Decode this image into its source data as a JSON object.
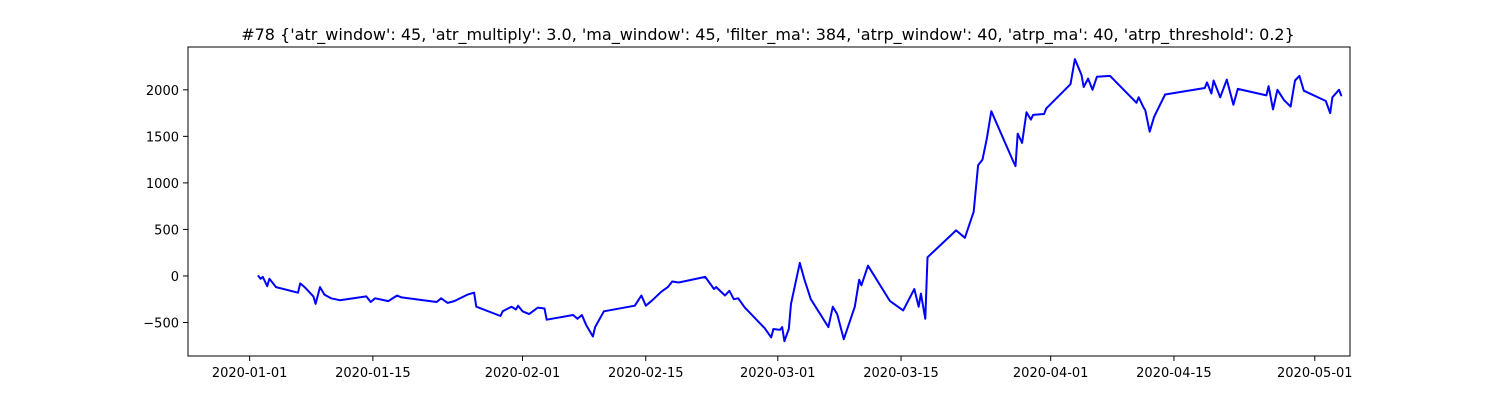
{
  "chart_data": {
    "type": "line",
    "title": "#78 {'atr_window': 45, 'atr_multiply': 3.0, 'ma_window': 45, 'filter_ma': 384, 'atrp_window': 40, 'atrp_ma': 40, 'atrp_threshold': 0.2}",
    "xlabel": "",
    "ylabel": "",
    "x_type": "date",
    "xlim": [
      "2019-12-25",
      "2020-05-05"
    ],
    "ylim": [
      -860,
      2460
    ],
    "x_ticks": [
      "2020-01-01",
      "2020-01-15",
      "2020-02-01",
      "2020-02-15",
      "2020-03-01",
      "2020-03-15",
      "2020-04-01",
      "2020-04-15",
      "2020-05-01"
    ],
    "x_tick_labels": [
      "2020-01-01",
      "2020-01-15",
      "2020-02-01",
      "2020-02-15",
      "2020-03-01",
      "2020-03-15",
      "2020-04-01",
      "2020-04-15",
      "2020-05-01"
    ],
    "y_ticks": [
      -500,
      0,
      500,
      1000,
      1500,
      2000
    ],
    "y_tick_labels": [
      "−500",
      "0",
      "500",
      "1000",
      "1500",
      "2000"
    ],
    "grid": false,
    "legend": "none",
    "series": [
      {
        "color": "#0000ff",
        "points": [
          [
            "2020-01-02 00:00",
            0
          ],
          [
            "2020-01-02 06:00",
            -30
          ],
          [
            "2020-01-02 12:00",
            -10
          ],
          [
            "2020-01-02 18:00",
            -60
          ],
          [
            "2020-01-03 00:00",
            -110
          ],
          [
            "2020-01-03 06:00",
            -30
          ],
          [
            "2020-01-03 12:00",
            -60
          ],
          [
            "2020-01-04 00:00",
            -120
          ],
          [
            "2020-01-06 12:00",
            -180
          ],
          [
            "2020-01-06 18:00",
            -80
          ],
          [
            "2020-01-07 06:00",
            -120
          ],
          [
            "2020-01-08 06:00",
            -220
          ],
          [
            "2020-01-08 12:00",
            -300
          ],
          [
            "2020-01-09 00:00",
            -120
          ],
          [
            "2020-01-09 12:00",
            -200
          ],
          [
            "2020-01-10 06:00",
            -240
          ],
          [
            "2020-01-11 06:00",
            -260
          ],
          [
            "2020-01-14 06:00",
            -220
          ],
          [
            "2020-01-14 18:00",
            -280
          ],
          [
            "2020-01-15 06:00",
            -240
          ],
          [
            "2020-01-16 18:00",
            -270
          ],
          [
            "2020-01-17 18:00",
            -210
          ],
          [
            "2020-01-18 06:00",
            -230
          ],
          [
            "2020-01-22 06:00",
            -280
          ],
          [
            "2020-01-22 18:00",
            -240
          ],
          [
            "2020-01-23 12:00",
            -290
          ],
          [
            "2020-01-24 06:00",
            -270
          ],
          [
            "2020-01-25 18:00",
            -200
          ],
          [
            "2020-01-26 12:00",
            -180
          ],
          [
            "2020-01-26 18:00",
            -330
          ],
          [
            "2020-01-29 12:00",
            -430
          ],
          [
            "2020-01-29 18:00",
            -380
          ],
          [
            "2020-01-30 18:00",
            -330
          ],
          [
            "2020-01-31 06:00",
            -360
          ],
          [
            "2020-01-31 12:00",
            -320
          ],
          [
            "2020-02-01 00:00",
            -380
          ],
          [
            "2020-02-01 18:00",
            -410
          ],
          [
            "2020-02-02 18:00",
            -340
          ],
          [
            "2020-02-03 12:00",
            -350
          ],
          [
            "2020-02-03 18:00",
            -470
          ],
          [
            "2020-02-06 18:00",
            -420
          ],
          [
            "2020-02-07 06:00",
            -460
          ],
          [
            "2020-02-07 18:00",
            -420
          ],
          [
            "2020-02-08 06:00",
            -530
          ],
          [
            "2020-02-09 00:00",
            -650
          ],
          [
            "2020-02-09 06:00",
            -550
          ],
          [
            "2020-02-10 06:00",
            -380
          ],
          [
            "2020-02-13 18:00",
            -320
          ],
          [
            "2020-02-14 12:00",
            -210
          ],
          [
            "2020-02-15 00:00",
            -320
          ],
          [
            "2020-02-15 18:00",
            -260
          ],
          [
            "2020-02-16 18:00",
            -170
          ],
          [
            "2020-02-17 12:00",
            -120
          ],
          [
            "2020-02-18 00:00",
            -60
          ],
          [
            "2020-02-18 18:00",
            -70
          ],
          [
            "2020-02-21 18:00",
            -10
          ],
          [
            "2020-02-22 18:00",
            -140
          ],
          [
            "2020-02-23 00:00",
            -120
          ],
          [
            "2020-02-24 00:00",
            -210
          ],
          [
            "2020-02-24 12:00",
            -160
          ],
          [
            "2020-02-25 00:00",
            -250
          ],
          [
            "2020-02-25 12:00",
            -240
          ],
          [
            "2020-02-26 06:00",
            -340
          ],
          [
            "2020-02-28 12:00",
            -560
          ],
          [
            "2020-02-29 06:00",
            -660
          ],
          [
            "2020-02-29 12:00",
            -570
          ],
          [
            "2020-03-01 06:00",
            -580
          ],
          [
            "2020-03-01 12:00",
            -550
          ],
          [
            "2020-03-01 18:00",
            -700
          ],
          [
            "2020-03-02 06:00",
            -570
          ],
          [
            "2020-03-02 12:00",
            -300
          ],
          [
            "2020-03-03 12:00",
            140
          ],
          [
            "2020-03-04 00:00",
            -30
          ],
          [
            "2020-03-04 18:00",
            -250
          ],
          [
            "2020-03-06 18:00",
            -550
          ],
          [
            "2020-03-07 06:00",
            -330
          ],
          [
            "2020-03-07 18:00",
            -410
          ],
          [
            "2020-03-08 12:00",
            -680
          ],
          [
            "2020-03-09 18:00",
            -330
          ],
          [
            "2020-03-10 06:00",
            -40
          ],
          [
            "2020-03-10 12:00",
            -100
          ],
          [
            "2020-03-11 06:00",
            110
          ],
          [
            "2020-03-13 18:00",
            -270
          ],
          [
            "2020-03-15 06:00",
            -370
          ],
          [
            "2020-03-16 12:00",
            -140
          ],
          [
            "2020-03-17 00:00",
            -330
          ],
          [
            "2020-03-17 06:00",
            -190
          ],
          [
            "2020-03-17 18:00",
            -460
          ],
          [
            "2020-03-18 00:00",
            200
          ],
          [
            "2020-03-21 06:00",
            490
          ],
          [
            "2020-03-22 06:00",
            410
          ],
          [
            "2020-03-23 06:00",
            690
          ],
          [
            "2020-03-23 18:00",
            1190
          ],
          [
            "2020-03-24 06:00",
            1250
          ],
          [
            "2020-03-24 18:00",
            1480
          ],
          [
            "2020-03-25 06:00",
            1770
          ],
          [
            "2020-03-27 18:00",
            1230
          ],
          [
            "2020-03-28 00:00",
            1180
          ],
          [
            "2020-03-28 06:00",
            1530
          ],
          [
            "2020-03-28 18:00",
            1430
          ],
          [
            "2020-03-29 06:00",
            1760
          ],
          [
            "2020-03-29 18:00",
            1680
          ],
          [
            "2020-03-30 00:00",
            1730
          ],
          [
            "2020-03-31 06:00",
            1740
          ],
          [
            "2020-03-31 12:00",
            1800
          ],
          [
            "2020-04-03 06:00",
            2060
          ],
          [
            "2020-04-03 18:00",
            2330
          ],
          [
            "2020-04-04 12:00",
            2160
          ],
          [
            "2020-04-04 18:00",
            2030
          ],
          [
            "2020-04-05 06:00",
            2120
          ],
          [
            "2020-04-05 18:00",
            2000
          ],
          [
            "2020-04-06 06:00",
            2140
          ],
          [
            "2020-04-07 18:00",
            2150
          ],
          [
            "2020-04-10 18:00",
            1860
          ],
          [
            "2020-04-11 00:00",
            1920
          ],
          [
            "2020-04-11 12:00",
            1820
          ],
          [
            "2020-04-11 18:00",
            1780
          ],
          [
            "2020-04-12 06:00",
            1550
          ],
          [
            "2020-04-12 18:00",
            1710
          ],
          [
            "2020-04-14 00:00",
            1950
          ],
          [
            "2020-04-18 12:00",
            2020
          ],
          [
            "2020-04-18 18:00",
            2080
          ],
          [
            "2020-04-19 06:00",
            1960
          ],
          [
            "2020-04-19 12:00",
            2100
          ],
          [
            "2020-04-20 06:00",
            1920
          ],
          [
            "2020-04-21 00:00",
            2110
          ],
          [
            "2020-04-21 18:00",
            1840
          ],
          [
            "2020-04-22 06:00",
            2010
          ],
          [
            "2020-04-25 12:00",
            1940
          ],
          [
            "2020-04-25 18:00",
            2040
          ],
          [
            "2020-04-26 06:00",
            1790
          ],
          [
            "2020-04-26 18:00",
            2000
          ],
          [
            "2020-04-27 12:00",
            1890
          ],
          [
            "2020-04-28 06:00",
            1820
          ],
          [
            "2020-04-28 18:00",
            2100
          ],
          [
            "2020-04-29 06:00",
            2150
          ],
          [
            "2020-04-29 18:00",
            1990
          ],
          [
            "2020-05-02 06:00",
            1880
          ],
          [
            "2020-05-02 18:00",
            1750
          ],
          [
            "2020-05-03 00:00",
            1920
          ],
          [
            "2020-05-03 18:00",
            2000
          ],
          [
            "2020-05-04 00:00",
            1940
          ]
        ]
      }
    ]
  }
}
